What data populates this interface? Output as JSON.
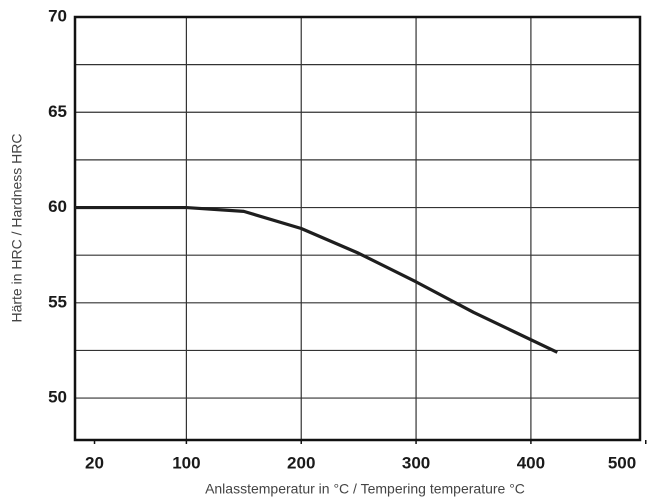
{
  "chart_data": {
    "type": "line",
    "x_label": "Anlasstemperatur in °C / Tempering temperature °C",
    "y_label": "Härte in HRC / Hardness HRC",
    "x": [
      3,
      100,
      150,
      200,
      250,
      300,
      350,
      423
    ],
    "series": [
      {
        "color": "#1e1e1e",
        "values": [
          60,
          60,
          59.8,
          58.9,
          57.6,
          56.1,
          54.5,
          52.4
        ]
      }
    ],
    "xlim": [
      3,
      495
    ],
    "ylim": [
      47.8,
      70
    ],
    "xticks": [
      20,
      100,
      200,
      300,
      400,
      500
    ],
    "xgrid": [
      100,
      200,
      300,
      400
    ],
    "yticks": [
      50,
      55,
      60,
      65,
      70
    ],
    "yminor_ticks": [
      52.5,
      57.5,
      62.5,
      67.5
    ],
    "grid": true
  }
}
